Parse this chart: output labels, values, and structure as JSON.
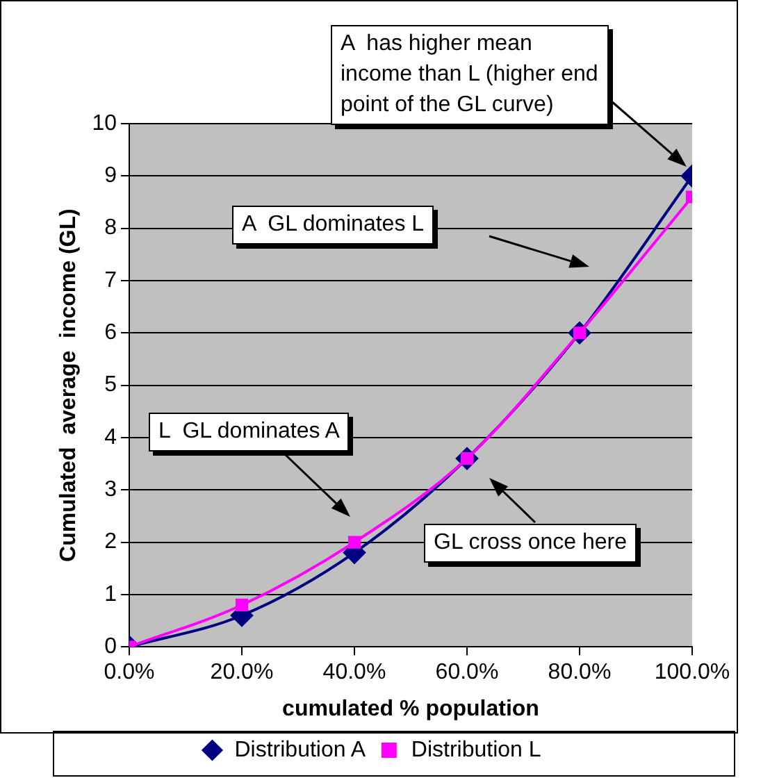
{
  "chart_data": {
    "type": "line",
    "xlabel": "cumulated % population",
    "ylabel": "Cumulated  average  income (GL)",
    "x": [
      0,
      20,
      40,
      60,
      80,
      100
    ],
    "series": [
      {
        "name": "Distribution A",
        "color": "#000080",
        "marker": "diamond",
        "values": [
          0,
          0.6,
          1.8,
          3.6,
          6.0,
          9.0
        ]
      },
      {
        "name": "Distribution L",
        "color": "#ff00ff",
        "marker": "square",
        "values": [
          0,
          0.8,
          2.0,
          3.6,
          6.0,
          8.6
        ]
      }
    ],
    "xlim": [
      0,
      100
    ],
    "xticks": [
      {
        "value": 0,
        "label": "0.0%"
      },
      {
        "value": 20,
        "label": "20.0%"
      },
      {
        "value": 40,
        "label": "40.0%"
      },
      {
        "value": 60,
        "label": "60.0%"
      },
      {
        "value": 80,
        "label": "80.0%"
      },
      {
        "value": 100,
        "label": "100.0%"
      }
    ],
    "ylim": [
      0,
      10
    ],
    "yticks": [
      0,
      1,
      2,
      3,
      4,
      5,
      6,
      7,
      8,
      9,
      10
    ],
    "grid": "y",
    "legend": "bottom",
    "line_style": "solid",
    "annotations": [
      "A  has higher mean income than L (higher end point of the GL curve)",
      "A  GL dominates L",
      "L  GL dominates A",
      "GL cross once here"
    ]
  }
}
